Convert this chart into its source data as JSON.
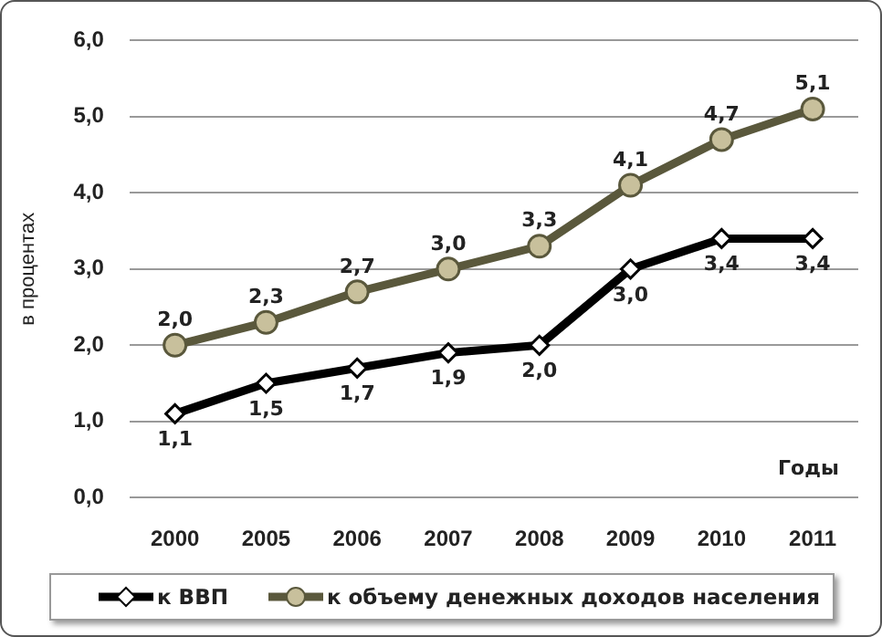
{
  "chart_data": {
    "type": "line",
    "ylabel": "в процентах",
    "xlabel": "Годы",
    "categories": [
      "2000",
      "2005",
      "2006",
      "2007",
      "2008",
      "2009",
      "2010",
      "2011"
    ],
    "series": [
      {
        "name": "к ВВП",
        "color": "#000000",
        "marker": "diamond",
        "values": [
          1.1,
          1.5,
          1.7,
          1.9,
          2.0,
          3.0,
          3.4,
          3.4
        ],
        "value_labels": [
          "1,1",
          "1,5",
          "1,7",
          "1,9",
          "2,0",
          "3,0",
          "3,4",
          "3,4"
        ]
      },
      {
        "name": "к объему денежных доходов населения",
        "color": "#5a583c",
        "marker": "circle",
        "values": [
          2.0,
          2.3,
          2.7,
          3.0,
          3.3,
          4.1,
          4.7,
          5.1
        ],
        "value_labels": [
          "2,0",
          "2,3",
          "2,7",
          "3,0",
          "3,3",
          "4,1",
          "4,7",
          "5,1"
        ]
      }
    ],
    "ylim": [
      0,
      6
    ],
    "yticks": [
      {
        "value": 0,
        "label": "0,0"
      },
      {
        "value": 1,
        "label": "1,0"
      },
      {
        "value": 2,
        "label": "2,0"
      },
      {
        "value": 3,
        "label": "3,0"
      },
      {
        "value": 4,
        "label": "4,0"
      },
      {
        "value": 5,
        "label": "5,0"
      },
      {
        "value": 6,
        "label": "6,0"
      }
    ],
    "grid": "y",
    "legend": "bottom"
  }
}
